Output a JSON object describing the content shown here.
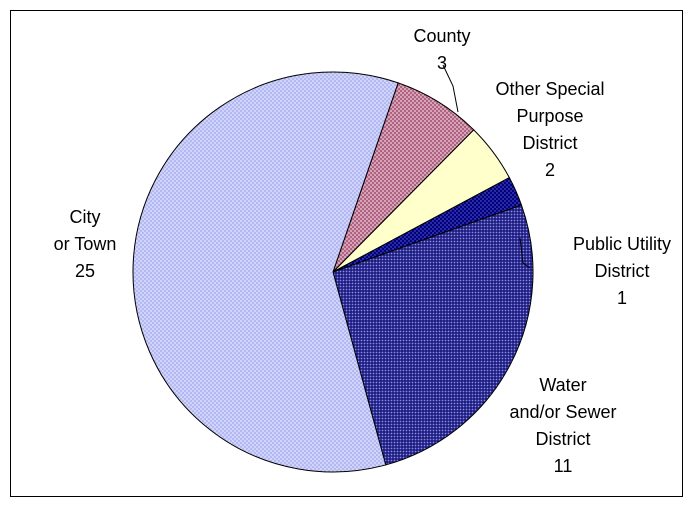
{
  "chart_data": {
    "type": "pie",
    "title": "",
    "slices": [
      {
        "label_lines": [
          "County"
        ],
        "value": 3,
        "color": "#b06080",
        "pattern": "dots-light"
      },
      {
        "label_lines": [
          "Other Special",
          "Purpose",
          "District"
        ],
        "value": 2,
        "color": "#ffffcc",
        "pattern": "none"
      },
      {
        "label_lines": [
          "Public Utility",
          "District"
        ],
        "value": 1,
        "color": "#000080",
        "pattern": "dots-light"
      },
      {
        "label_lines": [
          "Water",
          "and/or Sewer",
          "District"
        ],
        "value": 11,
        "color": "#2a2a8a",
        "pattern": "dots-dense"
      },
      {
        "label_lines": [
          "City",
          "or Town"
        ],
        "value": 25,
        "color": "#b8bcf4",
        "pattern": "dots-light"
      }
    ],
    "legend": "none",
    "data_labels": "category name and value, outside with leader lines"
  }
}
